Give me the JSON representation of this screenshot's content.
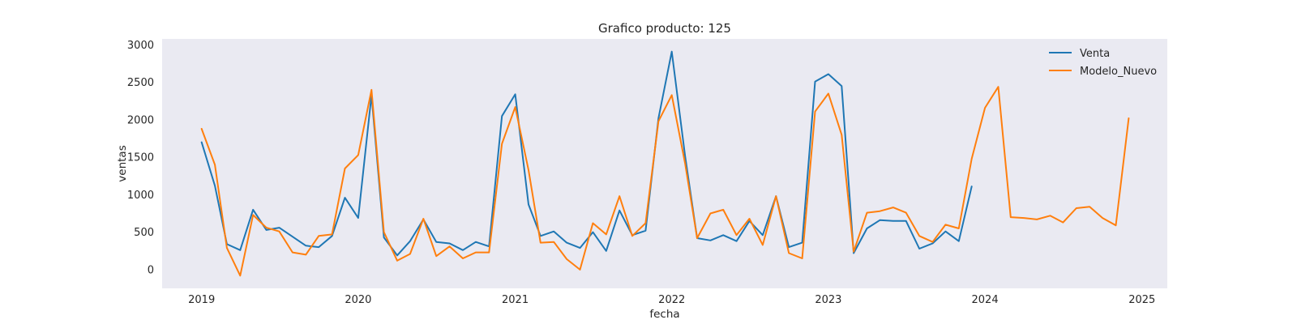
{
  "chart_data": {
    "type": "line",
    "title": "Grafico producto: 125",
    "xlabel": "fecha",
    "ylabel": "ventas",
    "xlim": [
      "2018-10-01",
      "2025-03-01"
    ],
    "ylim": [
      -250,
      3080
    ],
    "xticks": [
      {
        "date": "2019-01-01",
        "label": "2019"
      },
      {
        "date": "2020-01-01",
        "label": "2020"
      },
      {
        "date": "2021-01-01",
        "label": "2021"
      },
      {
        "date": "2022-01-01",
        "label": "2022"
      },
      {
        "date": "2023-01-01",
        "label": "2023"
      },
      {
        "date": "2024-01-01",
        "label": "2024"
      },
      {
        "date": "2025-01-01",
        "label": "2025"
      }
    ],
    "yticks": [
      0,
      500,
      1000,
      1500,
      2000,
      2500,
      3000
    ],
    "grid": false,
    "legend_position": "top-right",
    "x": [
      "2019-01",
      "2019-02",
      "2019-03",
      "2019-04",
      "2019-05",
      "2019-06",
      "2019-07",
      "2019-08",
      "2019-09",
      "2019-10",
      "2019-11",
      "2019-12",
      "2020-01",
      "2020-02",
      "2020-03",
      "2020-04",
      "2020-05",
      "2020-06",
      "2020-07",
      "2020-08",
      "2020-09",
      "2020-10",
      "2020-11",
      "2020-12",
      "2021-01",
      "2021-02",
      "2021-03",
      "2021-04",
      "2021-05",
      "2021-06",
      "2021-07",
      "2021-08",
      "2021-09",
      "2021-10",
      "2021-11",
      "2021-12",
      "2022-01",
      "2022-02",
      "2022-03",
      "2022-04",
      "2022-05",
      "2022-06",
      "2022-07",
      "2022-08",
      "2022-09",
      "2022-10",
      "2022-11",
      "2022-12",
      "2023-01",
      "2023-02",
      "2023-03",
      "2023-04",
      "2023-05",
      "2023-06",
      "2023-07",
      "2023-08",
      "2023-09",
      "2023-10",
      "2023-11",
      "2023-12",
      "2024-01",
      "2024-02",
      "2024-03",
      "2024-04",
      "2024-05",
      "2024-06",
      "2024-07",
      "2024-08",
      "2024-09",
      "2024-10",
      "2024-11",
      "2024-12"
    ],
    "series": [
      {
        "name": "Venta",
        "color": "#1f77b4",
        "values": [
          1700,
          1120,
          340,
          260,
          800,
          530,
          560,
          440,
          320,
          300,
          450,
          960,
          690,
          2330,
          430,
          190,
          380,
          670,
          370,
          350,
          260,
          370,
          310,
          2050,
          2340,
          870,
          450,
          510,
          360,
          290,
          500,
          250,
          790,
          460,
          520,
          2020,
          2910,
          1520,
          420,
          390,
          460,
          380,
          650,
          460,
          980,
          300,
          360,
          2510,
          2610,
          2450,
          220,
          550,
          660,
          650,
          650,
          280,
          350,
          510,
          380,
          1110,
          null,
          null,
          null,
          null,
          null,
          null,
          null,
          null,
          null,
          null,
          null,
          null
        ]
      },
      {
        "name": "Modelo_Nuevo",
        "color": "#ff7f0e",
        "values": [
          1880,
          1400,
          290,
          -80,
          730,
          560,
          510,
          230,
          200,
          450,
          470,
          1350,
          1530,
          2400,
          500,
          120,
          210,
          680,
          180,
          310,
          150,
          230,
          230,
          1680,
          2170,
          1330,
          360,
          370,
          140,
          0,
          620,
          470,
          980,
          450,
          620,
          1980,
          2330,
          1420,
          420,
          750,
          800,
          460,
          680,
          330,
          980,
          220,
          150,
          2110,
          2350,
          1800,
          240,
          760,
          780,
          830,
          760,
          450,
          370,
          600,
          550,
          1480,
          2160,
          2440,
          700,
          690,
          670,
          720,
          630,
          820,
          840,
          690,
          590,
          2020
        ]
      }
    ]
  }
}
